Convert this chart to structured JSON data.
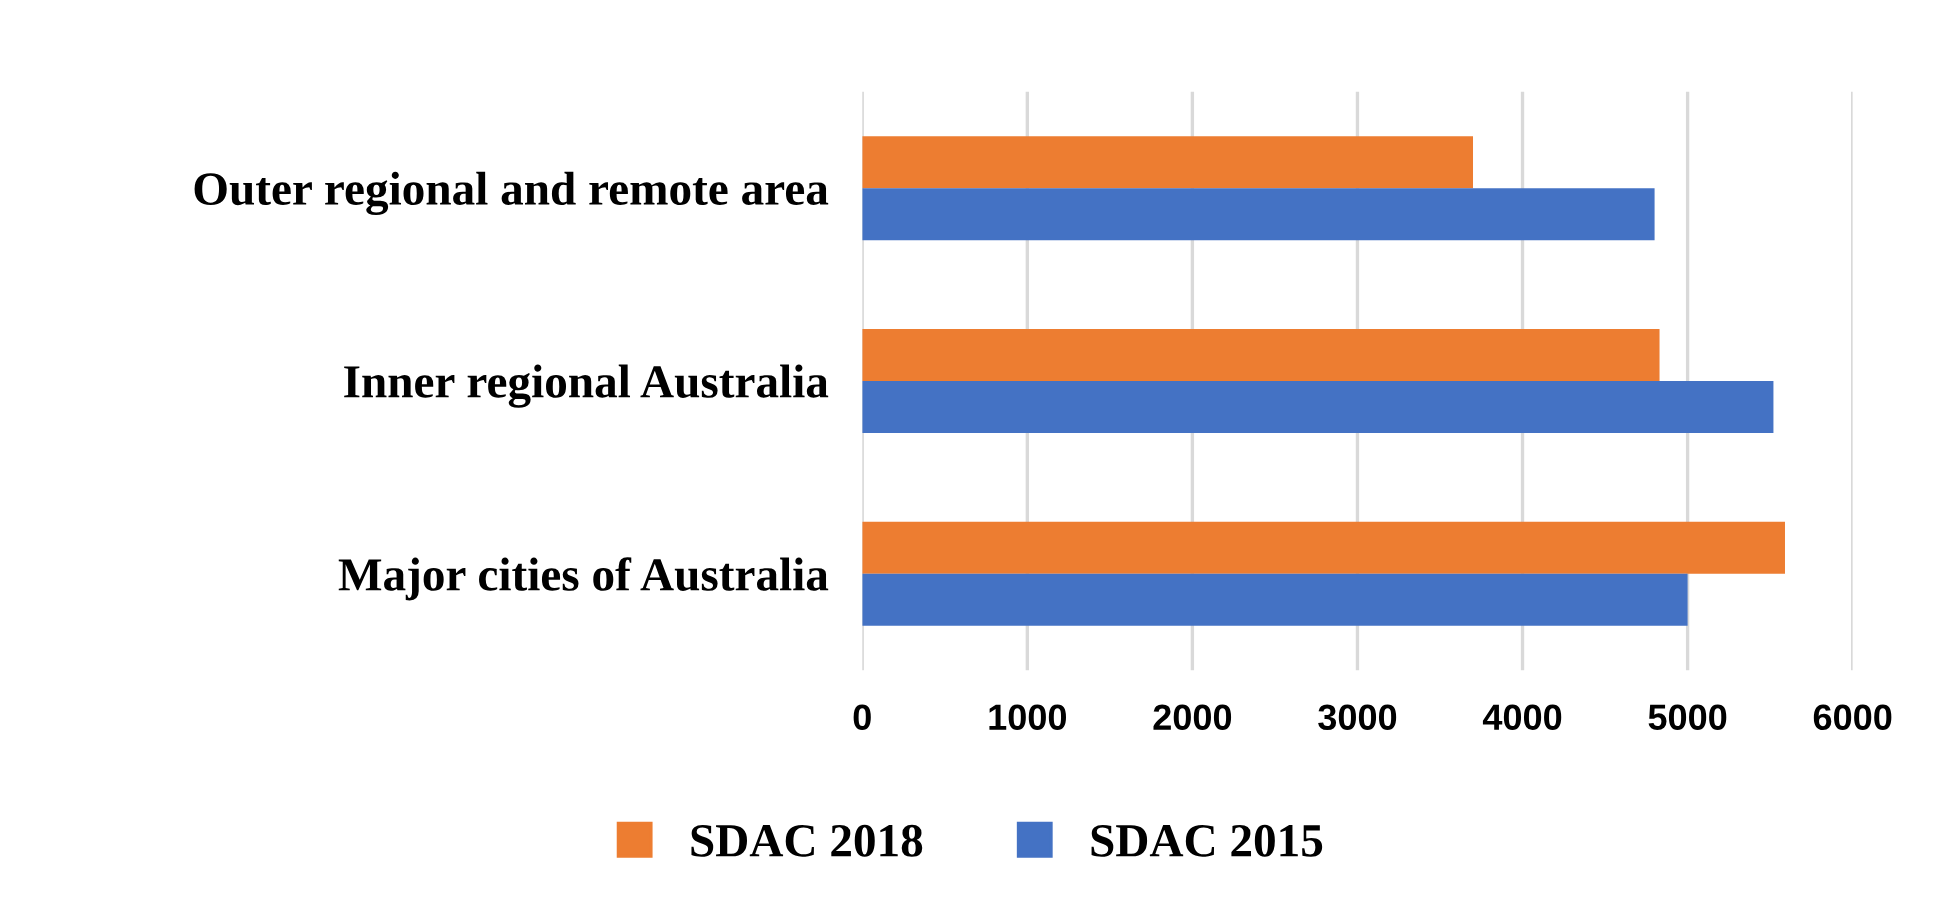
{
  "chart_data": {
    "type": "bar",
    "orientation": "horizontal",
    "categories": [
      "Outer regional and remote area",
      "Inner regional Australia",
      "Major cities of Australia"
    ],
    "series": [
      {
        "name": "SDAC 2018",
        "color": "#ed7d31",
        "values": [
          3700,
          4830,
          5590
        ]
      },
      {
        "name": "SDAC 2015",
        "color": "#4472c4",
        "values": [
          4800,
          5520,
          5000
        ]
      }
    ],
    "xlim": [
      0,
      6000
    ],
    "xticks": [
      0,
      1000,
      2000,
      3000,
      4000,
      5000,
      6000
    ],
    "grid": "x",
    "legend": "bottom"
  }
}
